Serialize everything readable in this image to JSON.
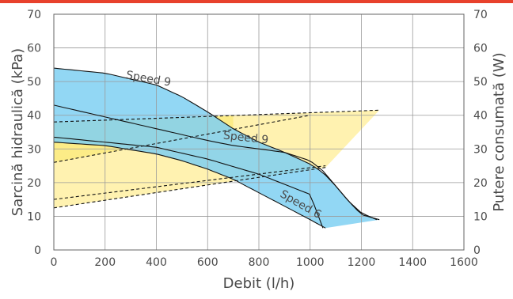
{
  "chart_data": {
    "type": "area",
    "xlabel": "Debit (l/h)",
    "ylabel": "Sarcină hidraulică (kPa)",
    "y2label": "Putere consumată (W)",
    "xlim": [
      0,
      1600
    ],
    "ylim": [
      0,
      70
    ],
    "y2lim": [
      0,
      70
    ],
    "x_ticks": [
      0,
      200,
      400,
      600,
      800,
      1000,
      1200,
      1400,
      1600
    ],
    "y_ticks": [
      0,
      10,
      20,
      30,
      40,
      50,
      60,
      70
    ],
    "y2_ticks": [
      0,
      10,
      20,
      30,
      40,
      50,
      60,
      70
    ],
    "grid": true,
    "colors": {
      "top_bar": "#e8412c",
      "head_fill": "#7fd0f2",
      "power_fill": "#fff2b0",
      "power_fill_dark": "#fbe97a",
      "grid": "#9a9a9a"
    },
    "series": [
      {
        "name": "Speed 9",
        "kind": "head",
        "x": [
          0,
          200,
          400,
          500,
          600,
          700,
          800,
          900,
          1000,
          1050,
          1100,
          1150,
          1200,
          1270
        ],
        "y": [
          54,
          52.5,
          49,
          45.5,
          41,
          36,
          32,
          29,
          25.5,
          23,
          19,
          14.5,
          10.5,
          9
        ]
      },
      {
        "name": "Speed 9",
        "kind": "head",
        "x": [
          0,
          200,
          400,
          600,
          700,
          800,
          900,
          1000,
          1050,
          1100,
          1150,
          1200,
          1260
        ],
        "y": [
          43,
          39.5,
          36,
          32.5,
          31,
          30,
          29,
          26.5,
          23.5,
          19,
          14.5,
          11,
          9
        ]
      },
      {
        "name": "",
        "kind": "head",
        "x": [
          0,
          200,
          400,
          600,
          800,
          1000,
          1050
        ],
        "y": [
          33.5,
          32,
          30.5,
          27,
          22.5,
          16.5,
          6.5
        ]
      },
      {
        "name": "Speed 6",
        "kind": "head",
        "x": [
          0,
          200,
          400,
          500,
          600,
          700,
          800,
          900,
          1000,
          1060
        ],
        "y": [
          32,
          31,
          28.5,
          26.5,
          24,
          21,
          17,
          13,
          9,
          6.5
        ]
      },
      {
        "name": "",
        "kind": "power",
        "x": [
          0,
          1270
        ],
        "y": [
          38,
          41.5
        ]
      },
      {
        "name": "",
        "kind": "power",
        "x": [
          0,
          1000
        ],
        "y": [
          26,
          40
        ]
      },
      {
        "name": "",
        "kind": "power",
        "x": [
          0,
          1060
        ],
        "y": [
          15,
          25
        ]
      },
      {
        "name": "",
        "kind": "power",
        "x": [
          0,
          1060
        ],
        "y": [
          12.5,
          24.5
        ]
      }
    ],
    "annotations": [
      {
        "text": "Speed 9",
        "x": 280,
        "y": 51
      },
      {
        "text": "Speed 9",
        "x": 660,
        "y": 33
      },
      {
        "text": "Speed 6",
        "x": 880,
        "y": 16
      }
    ]
  }
}
